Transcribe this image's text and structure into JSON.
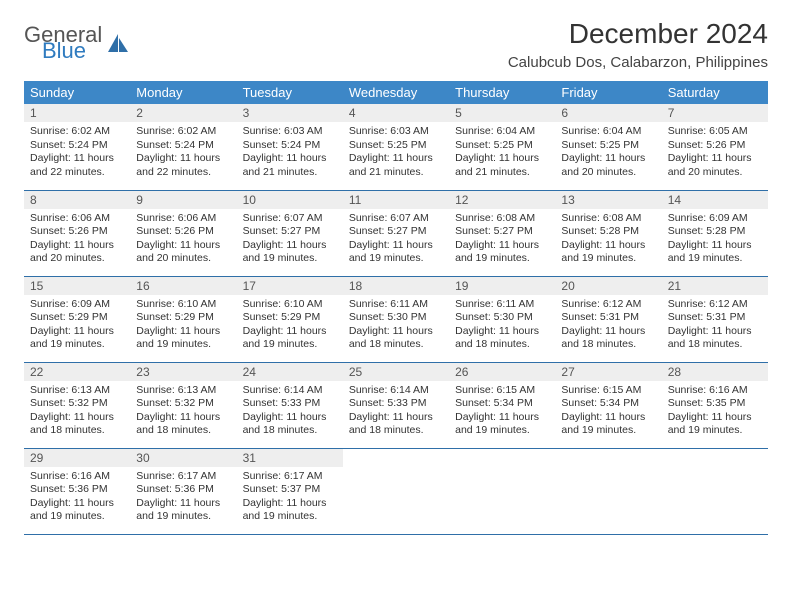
{
  "logo": {
    "text1": "General",
    "text2": "Blue",
    "icon_color": "#2f6fa8"
  },
  "title": "December 2024",
  "location": "Calubcub Dos, Calabarzon, Philippines",
  "colors": {
    "header_bg": "#3d87c7",
    "header_text": "#ffffff",
    "daynum_bg": "#eeeeee",
    "border": "#2f6fa8",
    "body_text": "#333333"
  },
  "weekdays": [
    "Sunday",
    "Monday",
    "Tuesday",
    "Wednesday",
    "Thursday",
    "Friday",
    "Saturday"
  ],
  "weeks": [
    [
      {
        "n": "1",
        "sr": "6:02 AM",
        "ss": "5:24 PM",
        "dl": "11 hours and 22 minutes."
      },
      {
        "n": "2",
        "sr": "6:02 AM",
        "ss": "5:24 PM",
        "dl": "11 hours and 22 minutes."
      },
      {
        "n": "3",
        "sr": "6:03 AM",
        "ss": "5:24 PM",
        "dl": "11 hours and 21 minutes."
      },
      {
        "n": "4",
        "sr": "6:03 AM",
        "ss": "5:25 PM",
        "dl": "11 hours and 21 minutes."
      },
      {
        "n": "5",
        "sr": "6:04 AM",
        "ss": "5:25 PM",
        "dl": "11 hours and 21 minutes."
      },
      {
        "n": "6",
        "sr": "6:04 AM",
        "ss": "5:25 PM",
        "dl": "11 hours and 20 minutes."
      },
      {
        "n": "7",
        "sr": "6:05 AM",
        "ss": "5:26 PM",
        "dl": "11 hours and 20 minutes."
      }
    ],
    [
      {
        "n": "8",
        "sr": "6:06 AM",
        "ss": "5:26 PM",
        "dl": "11 hours and 20 minutes."
      },
      {
        "n": "9",
        "sr": "6:06 AM",
        "ss": "5:26 PM",
        "dl": "11 hours and 20 minutes."
      },
      {
        "n": "10",
        "sr": "6:07 AM",
        "ss": "5:27 PM",
        "dl": "11 hours and 19 minutes."
      },
      {
        "n": "11",
        "sr": "6:07 AM",
        "ss": "5:27 PM",
        "dl": "11 hours and 19 minutes."
      },
      {
        "n": "12",
        "sr": "6:08 AM",
        "ss": "5:27 PM",
        "dl": "11 hours and 19 minutes."
      },
      {
        "n": "13",
        "sr": "6:08 AM",
        "ss": "5:28 PM",
        "dl": "11 hours and 19 minutes."
      },
      {
        "n": "14",
        "sr": "6:09 AM",
        "ss": "5:28 PM",
        "dl": "11 hours and 19 minutes."
      }
    ],
    [
      {
        "n": "15",
        "sr": "6:09 AM",
        "ss": "5:29 PM",
        "dl": "11 hours and 19 minutes."
      },
      {
        "n": "16",
        "sr": "6:10 AM",
        "ss": "5:29 PM",
        "dl": "11 hours and 19 minutes."
      },
      {
        "n": "17",
        "sr": "6:10 AM",
        "ss": "5:29 PM",
        "dl": "11 hours and 19 minutes."
      },
      {
        "n": "18",
        "sr": "6:11 AM",
        "ss": "5:30 PM",
        "dl": "11 hours and 18 minutes."
      },
      {
        "n": "19",
        "sr": "6:11 AM",
        "ss": "5:30 PM",
        "dl": "11 hours and 18 minutes."
      },
      {
        "n": "20",
        "sr": "6:12 AM",
        "ss": "5:31 PM",
        "dl": "11 hours and 18 minutes."
      },
      {
        "n": "21",
        "sr": "6:12 AM",
        "ss": "5:31 PM",
        "dl": "11 hours and 18 minutes."
      }
    ],
    [
      {
        "n": "22",
        "sr": "6:13 AM",
        "ss": "5:32 PM",
        "dl": "11 hours and 18 minutes."
      },
      {
        "n": "23",
        "sr": "6:13 AM",
        "ss": "5:32 PM",
        "dl": "11 hours and 18 minutes."
      },
      {
        "n": "24",
        "sr": "6:14 AM",
        "ss": "5:33 PM",
        "dl": "11 hours and 18 minutes."
      },
      {
        "n": "25",
        "sr": "6:14 AM",
        "ss": "5:33 PM",
        "dl": "11 hours and 18 minutes."
      },
      {
        "n": "26",
        "sr": "6:15 AM",
        "ss": "5:34 PM",
        "dl": "11 hours and 19 minutes."
      },
      {
        "n": "27",
        "sr": "6:15 AM",
        "ss": "5:34 PM",
        "dl": "11 hours and 19 minutes."
      },
      {
        "n": "28",
        "sr": "6:16 AM",
        "ss": "5:35 PM",
        "dl": "11 hours and 19 minutes."
      }
    ],
    [
      {
        "n": "29",
        "sr": "6:16 AM",
        "ss": "5:36 PM",
        "dl": "11 hours and 19 minutes."
      },
      {
        "n": "30",
        "sr": "6:17 AM",
        "ss": "5:36 PM",
        "dl": "11 hours and 19 minutes."
      },
      {
        "n": "31",
        "sr": "6:17 AM",
        "ss": "5:37 PM",
        "dl": "11 hours and 19 minutes."
      },
      null,
      null,
      null,
      null
    ]
  ],
  "labels": {
    "sunrise": "Sunrise:",
    "sunset": "Sunset:",
    "daylight": "Daylight:"
  }
}
